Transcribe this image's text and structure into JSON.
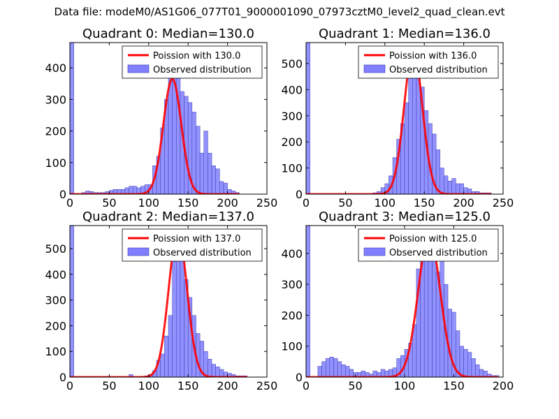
{
  "figure": {
    "title": "Data file: modeM0/AS1G06_077T01_9000001090_07973cztM0_level2_quad_clean.evt"
  },
  "style": {
    "bar_color": "#7f7fff",
    "bar_edge": "#3a3ab0",
    "line_color": "#ff0000",
    "axis_color": "#000000"
  },
  "chart_data": [
    {
      "type": "bar",
      "title": "Quadrant 0: Median=130.0",
      "xlim": [
        0,
        250
      ],
      "ylim": [
        0,
        480
      ],
      "xticks": [
        0,
        50,
        100,
        150,
        200,
        250
      ],
      "yticks": [
        0,
        100,
        200,
        300,
        400
      ],
      "bin_width": 5,
      "bins": [
        [
          0,
          480
        ],
        [
          15,
          5
        ],
        [
          20,
          10
        ],
        [
          25,
          8
        ],
        [
          30,
          5
        ],
        [
          35,
          5
        ],
        [
          40,
          5
        ],
        [
          45,
          8
        ],
        [
          50,
          12
        ],
        [
          55,
          15
        ],
        [
          60,
          15
        ],
        [
          65,
          15
        ],
        [
          70,
          20
        ],
        [
          75,
          25
        ],
        [
          80,
          25
        ],
        [
          85,
          20
        ],
        [
          90,
          25
        ],
        [
          95,
          30
        ],
        [
          100,
          30
        ],
        [
          105,
          90
        ],
        [
          110,
          120
        ],
        [
          115,
          210
        ],
        [
          120,
          300
        ],
        [
          125,
          370
        ],
        [
          130,
          390
        ],
        [
          135,
          385
        ],
        [
          140,
          325
        ],
        [
          145,
          310
        ],
        [
          150,
          290
        ],
        [
          155,
          260
        ],
        [
          160,
          215
        ],
        [
          165,
          130
        ],
        [
          170,
          200
        ],
        [
          175,
          130
        ],
        [
          180,
          90
        ],
        [
          185,
          80
        ],
        [
          190,
          40
        ],
        [
          195,
          35
        ],
        [
          200,
          15
        ],
        [
          205,
          10
        ],
        [
          210,
          5
        ]
      ],
      "poisson_mean": 130.0,
      "poisson_peak": 365,
      "line_range": [
        0,
        215
      ],
      "legend": {
        "line_label": "Poission with 130.0",
        "bar_label": "Observed distribution",
        "placement": "top-right"
      }
    },
    {
      "type": "bar",
      "title": "Quadrant 1: Median=136.0",
      "xlim": [
        0,
        250
      ],
      "ylim": [
        0,
        580
      ],
      "xticks": [
        0,
        50,
        100,
        150,
        200,
        250
      ],
      "yticks": [
        0,
        100,
        200,
        300,
        400,
        500
      ],
      "bin_width": 5,
      "bins": [
        [
          0,
          580
        ],
        [
          85,
          5
        ],
        [
          90,
          10
        ],
        [
          95,
          25
        ],
        [
          100,
          40
        ],
        [
          105,
          70
        ],
        [
          110,
          140
        ],
        [
          115,
          210
        ],
        [
          120,
          270
        ],
        [
          125,
          350
        ],
        [
          130,
          470
        ],
        [
          135,
          550
        ],
        [
          140,
          495
        ],
        [
          145,
          410
        ],
        [
          150,
          320
        ],
        [
          155,
          270
        ],
        [
          160,
          230
        ],
        [
          165,
          170
        ],
        [
          170,
          100
        ],
        [
          175,
          70
        ],
        [
          180,
          50
        ],
        [
          185,
          60
        ],
        [
          190,
          40
        ],
        [
          195,
          40
        ],
        [
          200,
          25
        ],
        [
          205,
          20
        ],
        [
          210,
          10
        ],
        [
          215,
          10
        ],
        [
          220,
          5
        ],
        [
          225,
          5
        ],
        [
          230,
          5
        ]
      ],
      "poisson_mean": 136.0,
      "poisson_peak": 550,
      "line_range": [
        0,
        235
      ],
      "legend": {
        "line_label": "Poission with 136.0",
        "bar_label": "Observed distribution",
        "placement": "top-right"
      }
    },
    {
      "type": "bar",
      "title": "Quadrant 2: Median=137.0",
      "xlim": [
        0,
        250
      ],
      "ylim": [
        0,
        590
      ],
      "xticks": [
        0,
        50,
        100,
        150,
        200,
        250
      ],
      "yticks": [
        0,
        100,
        200,
        300,
        400,
        500
      ],
      "bin_width": 5,
      "bins": [
        [
          0,
          590
        ],
        [
          75,
          10
        ],
        [
          95,
          5
        ],
        [
          100,
          10
        ],
        [
          105,
          25
        ],
        [
          110,
          65
        ],
        [
          115,
          90
        ],
        [
          120,
          160
        ],
        [
          125,
          240
        ],
        [
          130,
          450
        ],
        [
          135,
          535
        ],
        [
          140,
          470
        ],
        [
          145,
          380
        ],
        [
          150,
          310
        ],
        [
          155,
          240
        ],
        [
          160,
          170
        ],
        [
          165,
          140
        ],
        [
          170,
          100
        ],
        [
          175,
          70
        ],
        [
          180,
          50
        ],
        [
          185,
          40
        ],
        [
          190,
          30
        ],
        [
          195,
          20
        ],
        [
          200,
          15
        ],
        [
          205,
          10
        ],
        [
          210,
          5
        ],
        [
          215,
          5
        ],
        [
          220,
          5
        ]
      ],
      "poisson_mean": 137.0,
      "poisson_peak": 565,
      "line_range": [
        0,
        225
      ],
      "legend": {
        "line_label": "Poission with 137.0",
        "bar_label": "Observed distribution",
        "placement": "top-right"
      }
    },
    {
      "type": "bar",
      "title": "Quadrant 3: Median=125.0",
      "xlim": [
        0,
        200
      ],
      "ylim": [
        0,
        490
      ],
      "xticks": [
        0,
        50,
        100,
        150,
        200
      ],
      "yticks": [
        0,
        100,
        200,
        300,
        400
      ],
      "bin_width": 4,
      "bins": [
        [
          0,
          490
        ],
        [
          12,
          35
        ],
        [
          16,
          50
        ],
        [
          20,
          60
        ],
        [
          24,
          65
        ],
        [
          28,
          60
        ],
        [
          32,
          50
        ],
        [
          36,
          40
        ],
        [
          40,
          35
        ],
        [
          44,
          25
        ],
        [
          48,
          15
        ],
        [
          52,
          15
        ],
        [
          56,
          20
        ],
        [
          60,
          15
        ],
        [
          64,
          10
        ],
        [
          68,
          20
        ],
        [
          72,
          15
        ],
        [
          76,
          25
        ],
        [
          80,
          20
        ],
        [
          84,
          25
        ],
        [
          88,
          30
        ],
        [
          92,
          60
        ],
        [
          96,
          70
        ],
        [
          100,
          90
        ],
        [
          104,
          110
        ],
        [
          108,
          170
        ],
        [
          112,
          350
        ],
        [
          116,
          380
        ],
        [
          120,
          460
        ],
        [
          124,
          460
        ],
        [
          128,
          400
        ],
        [
          132,
          340
        ],
        [
          136,
          380
        ],
        [
          140,
          300
        ],
        [
          144,
          220
        ],
        [
          148,
          210
        ],
        [
          152,
          150
        ],
        [
          156,
          100
        ],
        [
          160,
          90
        ],
        [
          164,
          80
        ],
        [
          168,
          60
        ],
        [
          172,
          40
        ],
        [
          176,
          25
        ],
        [
          180,
          20
        ],
        [
          184,
          10
        ],
        [
          188,
          5
        ],
        [
          192,
          5
        ]
      ],
      "poisson_mean": 125.0,
      "poisson_peak": 460,
      "line_range": [
        0,
        195
      ],
      "legend": {
        "line_label": "Poission with 125.0",
        "bar_label": "Observed distribution",
        "placement": "top-right"
      }
    }
  ]
}
